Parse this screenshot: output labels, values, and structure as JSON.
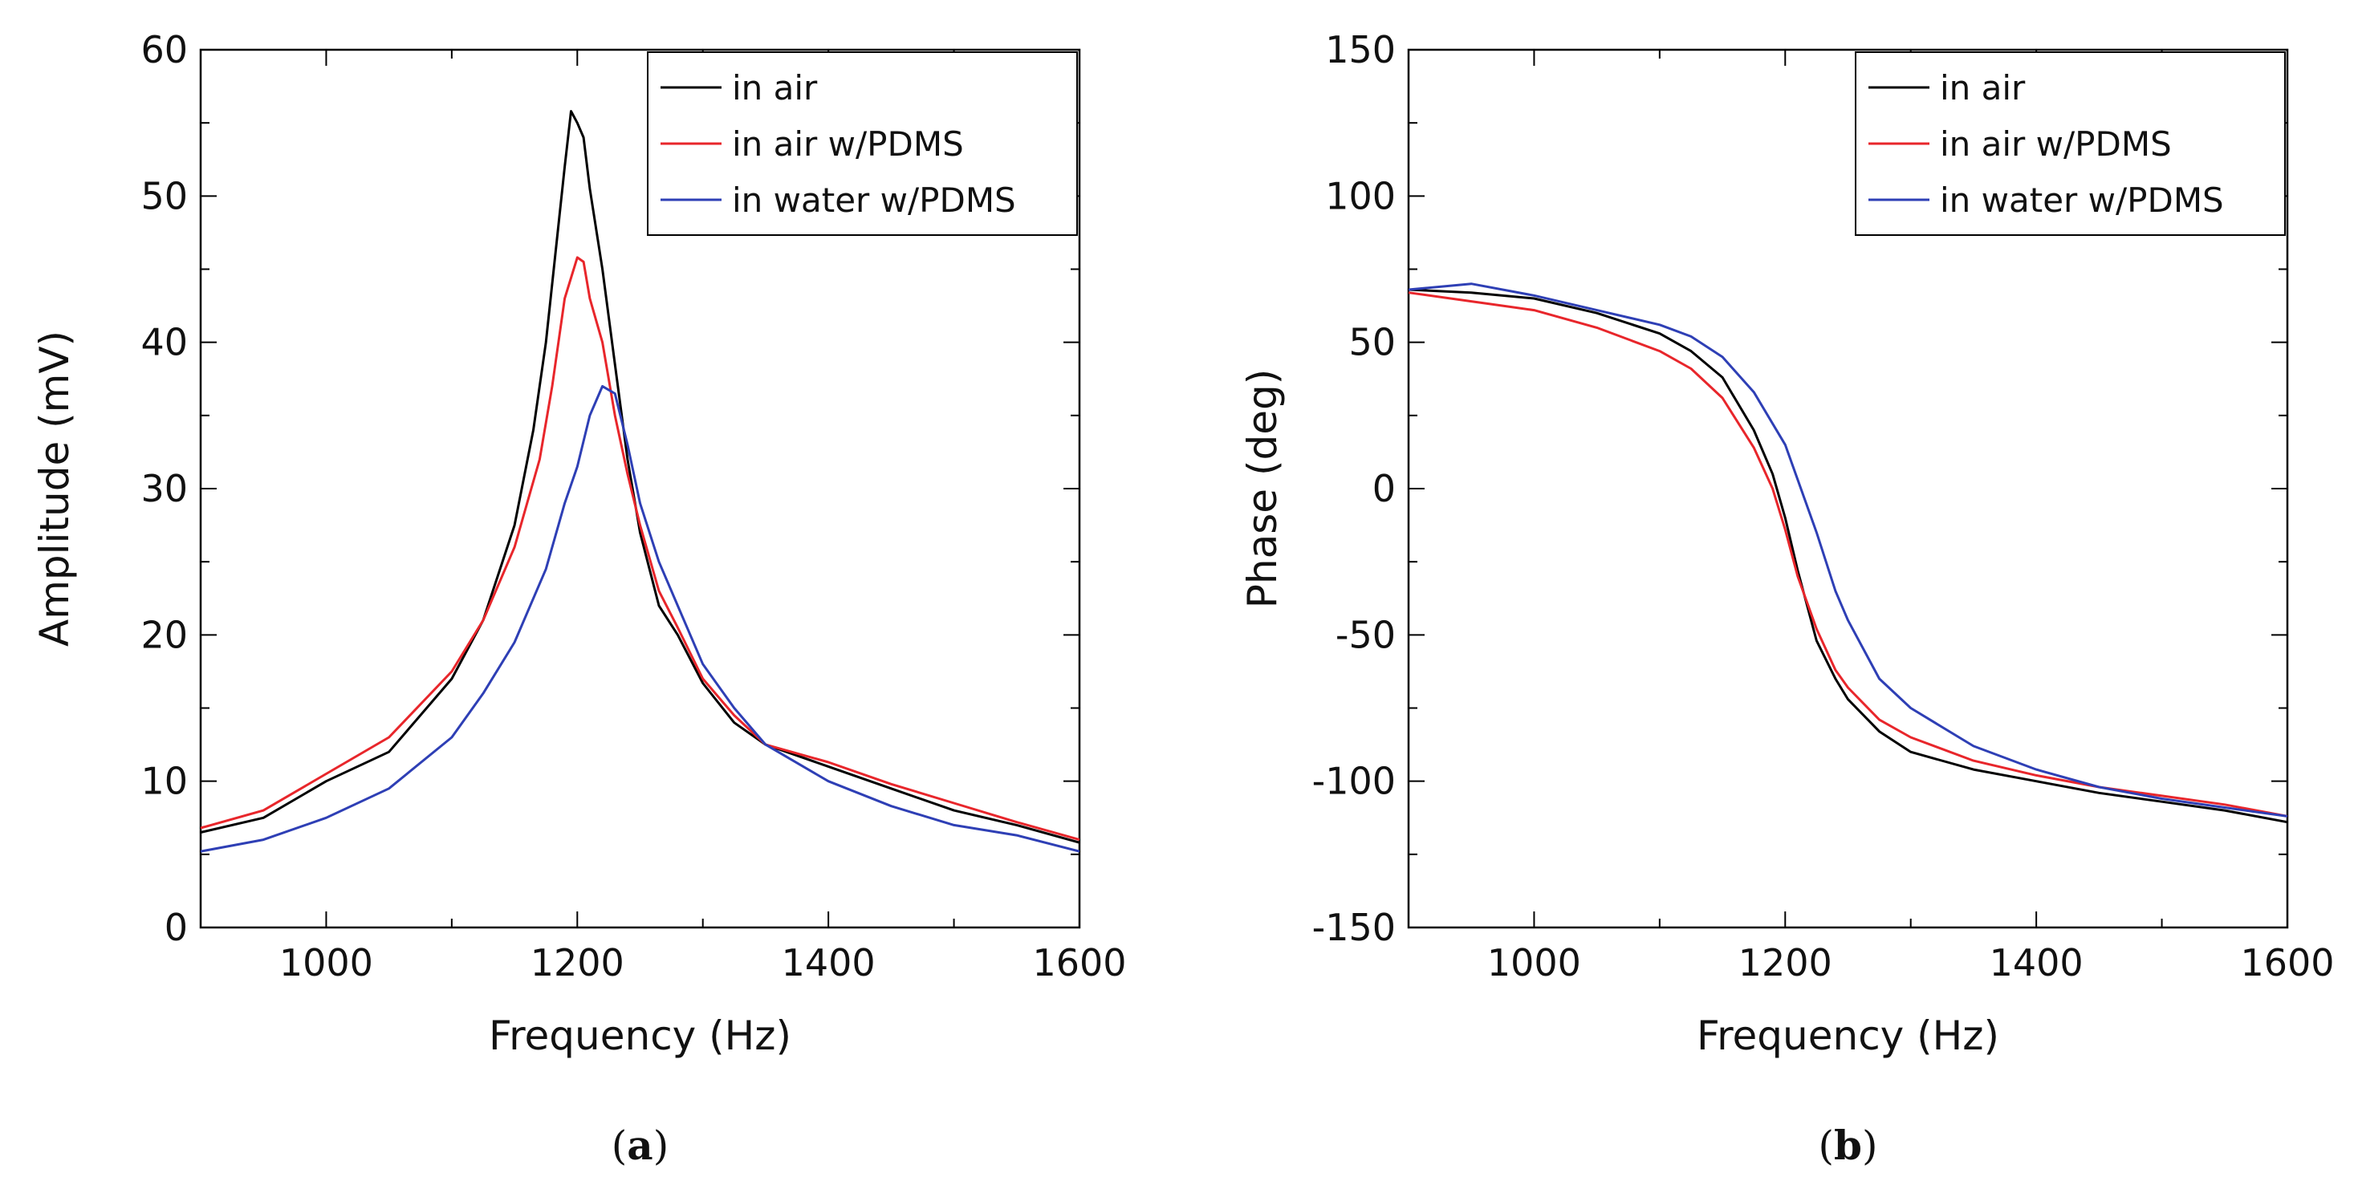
{
  "chart_data": [
    {
      "panel_label": "(a)",
      "panel_label_letter": "a",
      "type": "line",
      "xlabel": "Frequency (Hz)",
      "ylabel": "Amplitude (mV)",
      "xlim": [
        900,
        1600
      ],
      "ylim": [
        0,
        60
      ],
      "xticks": [
        1000,
        1200,
        1400,
        1600
      ],
      "yticks": [
        0,
        10,
        20,
        30,
        40,
        50,
        60
      ],
      "grid": false,
      "legend_position": "top-right",
      "series": [
        {
          "name": "in air",
          "color": "#000000",
          "x": [
            900,
            950,
            1000,
            1050,
            1100,
            1125,
            1150,
            1165,
            1175,
            1185,
            1190,
            1195,
            1200,
            1205,
            1210,
            1220,
            1230,
            1240,
            1250,
            1265,
            1280,
            1300,
            1325,
            1350,
            1400,
            1450,
            1500,
            1550,
            1600
          ],
          "y": [
            6.5,
            7.5,
            10,
            12,
            17,
            21,
            27.5,
            34,
            40,
            48,
            52,
            55.8,
            55,
            54,
            50.5,
            45,
            38.5,
            32,
            27,
            22,
            20,
            16.7,
            14,
            12.5,
            11,
            9.5,
            8,
            7,
            5.8
          ]
        },
        {
          "name": "in air w/PDMS",
          "color": "#e8262b",
          "x": [
            900,
            950,
            1000,
            1050,
            1100,
            1125,
            1150,
            1170,
            1180,
            1190,
            1200,
            1205,
            1210,
            1220,
            1230,
            1240,
            1250,
            1265,
            1280,
            1300,
            1325,
            1350,
            1400,
            1450,
            1500,
            1550,
            1600
          ],
          "y": [
            6.8,
            8,
            10.5,
            13,
            17.5,
            21,
            26,
            32,
            37,
            43,
            45.8,
            45.5,
            43,
            40,
            35,
            31,
            27.5,
            23,
            20.5,
            17,
            14.5,
            12.5,
            11.3,
            9.8,
            8.5,
            7.2,
            6
          ]
        },
        {
          "name": "in water w/PDMS",
          "color": "#2e3fb5",
          "x": [
            900,
            950,
            1000,
            1050,
            1100,
            1125,
            1150,
            1175,
            1190,
            1200,
            1210,
            1220,
            1230,
            1240,
            1250,
            1265,
            1280,
            1300,
            1325,
            1350,
            1400,
            1450,
            1500,
            1550,
            1600
          ],
          "y": [
            5.2,
            6,
            7.5,
            9.5,
            13,
            16,
            19.5,
            24.5,
            29,
            31.5,
            35,
            37,
            36.5,
            33,
            29,
            25,
            22,
            18,
            15,
            12.5,
            10,
            8.3,
            7,
            6.3,
            5.2
          ]
        }
      ]
    },
    {
      "panel_label": "(b)",
      "panel_label_letter": "b",
      "type": "line",
      "xlabel": "Frequency (Hz)",
      "ylabel": "Phase (deg)",
      "xlim": [
        900,
        1600
      ],
      "ylim": [
        -150,
        150
      ],
      "xticks": [
        1000,
        1200,
        1400,
        1600
      ],
      "yticks": [
        -150,
        -100,
        -50,
        0,
        50,
        100,
        150
      ],
      "grid": false,
      "legend_position": "top-right",
      "series": [
        {
          "name": "in air",
          "color": "#000000",
          "x": [
            900,
            950,
            1000,
            1050,
            1100,
            1125,
            1150,
            1175,
            1190,
            1200,
            1210,
            1225,
            1240,
            1250,
            1275,
            1300,
            1350,
            1400,
            1450,
            1500,
            1550,
            1600
          ],
          "y": [
            68,
            67,
            65,
            60,
            53,
            47,
            38,
            20,
            5,
            -10,
            -28,
            -52,
            -65,
            -72,
            -83,
            -90,
            -96,
            -100,
            -104,
            -107,
            -110,
            -114
          ]
        },
        {
          "name": "in air w/PDMS",
          "color": "#e8262b",
          "x": [
            900,
            950,
            1000,
            1050,
            1100,
            1125,
            1150,
            1175,
            1190,
            1200,
            1210,
            1225,
            1240,
            1250,
            1275,
            1300,
            1350,
            1400,
            1450,
            1500,
            1550,
            1600
          ],
          "y": [
            67,
            64,
            61,
            55,
            47,
            41,
            31,
            14,
            0,
            -14,
            -30,
            -48,
            -62,
            -68,
            -79,
            -85,
            -93,
            -98,
            -102,
            -105,
            -108,
            -112
          ]
        },
        {
          "name": "in water w/PDMS",
          "color": "#2e3fb5",
          "x": [
            900,
            950,
            1000,
            1050,
            1100,
            1125,
            1150,
            1175,
            1200,
            1225,
            1240,
            1250,
            1275,
            1300,
            1350,
            1400,
            1450,
            1500,
            1550,
            1600
          ],
          "y": [
            68,
            70,
            66,
            61,
            56,
            52,
            45,
            33,
            15,
            -15,
            -35,
            -45,
            -65,
            -75,
            -88,
            -96,
            -102,
            -106,
            -109,
            -112
          ]
        }
      ]
    }
  ]
}
